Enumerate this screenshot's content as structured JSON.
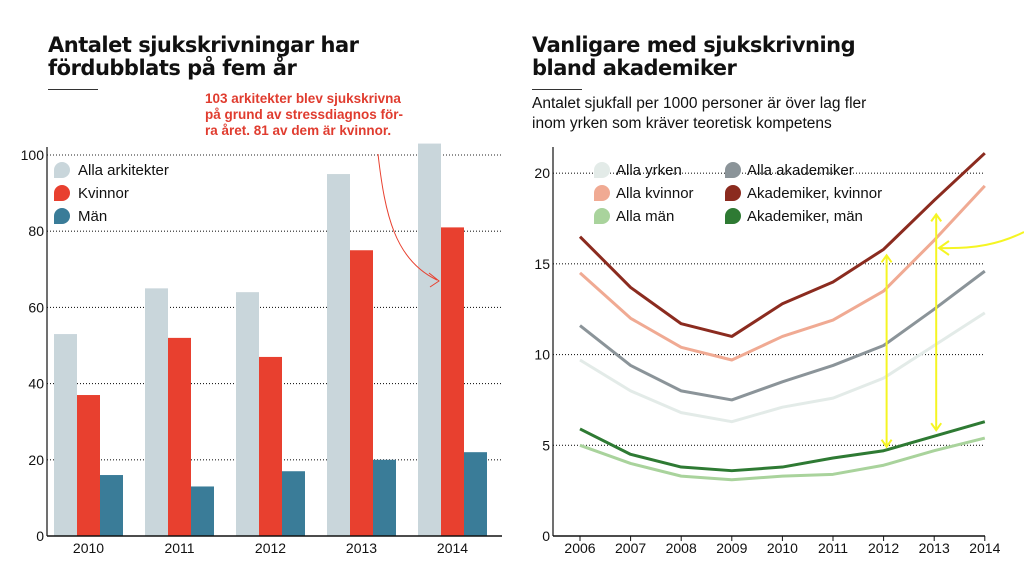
{
  "chart_data": [
    {
      "type": "bar",
      "title": "Antalet sjukskrivningar har\nfördubblats på fem år",
      "categories": [
        "2010",
        "2011",
        "2012",
        "2013",
        "2014"
      ],
      "series": [
        {
          "name": "Alla arkitekter",
          "color": "#c9d6db",
          "values": [
            53,
            65,
            64,
            95,
            103
          ]
        },
        {
          "name": "Kvinnor",
          "color": "#e8402f",
          "values": [
            37,
            52,
            47,
            75,
            81
          ]
        },
        {
          "name": "Män",
          "color": "#3a7c98",
          "values": [
            16,
            13,
            17,
            20,
            22
          ]
        }
      ],
      "yticks": [
        "0",
        "20",
        "40",
        "60",
        "80",
        "100"
      ],
      "ylim": [
        0,
        100
      ],
      "annotation": "103 arkitekter blev sjukskrivna\npå grund av stressdiagnos för-\nra året. 81 av dem är kvinnor."
    },
    {
      "type": "line",
      "title": "Vanligare med sjukskrivning\nbland akademiker",
      "subtitle": "Antalet sjukfall per 1000 personer är över lag fler\ninom yrken som kräver teoretisk kompetens",
      "x": [
        "2006",
        "2007",
        "2008",
        "2009",
        "2010",
        "2011",
        "2012",
        "2013",
        "2014"
      ],
      "series": [
        {
          "name": "Alla yrken",
          "color": "#e3ebe8",
          "values": [
            9.7,
            8.0,
            6.8,
            6.3,
            7.1,
            7.6,
            8.7,
            10.5,
            12.3
          ]
        },
        {
          "name": "Alla kvinnor",
          "color": "#f0aa93",
          "values": [
            14.5,
            12.0,
            10.4,
            9.7,
            11.0,
            11.9,
            13.5,
            16.3,
            19.3
          ]
        },
        {
          "name": "Alla män",
          "color": "#a9d39c",
          "values": [
            5.0,
            4.0,
            3.3,
            3.1,
            3.3,
            3.4,
            3.9,
            4.7,
            5.4
          ]
        },
        {
          "name": "Alla akademiker",
          "color": "#8b9499",
          "values": [
            11.6,
            9.4,
            8.0,
            7.5,
            8.5,
            9.4,
            10.5,
            12.5,
            14.6
          ]
        },
        {
          "name": "Akademiker, kvinnor",
          "color": "#8b2b1f",
          "values": [
            16.5,
            13.7,
            11.7,
            11.0,
            12.8,
            14.0,
            15.8,
            18.5,
            21.1
          ]
        },
        {
          "name": "Akademiker, män",
          "color": "#2e7a33",
          "values": [
            5.9,
            4.5,
            3.8,
            3.6,
            3.8,
            4.3,
            4.7,
            5.5,
            6.3
          ]
        }
      ],
      "yticks": [
        "0",
        "5",
        "10",
        "15",
        "20"
      ],
      "ylim": [
        0,
        21
      ],
      "highlight_color": "#f5f523"
    }
  ]
}
